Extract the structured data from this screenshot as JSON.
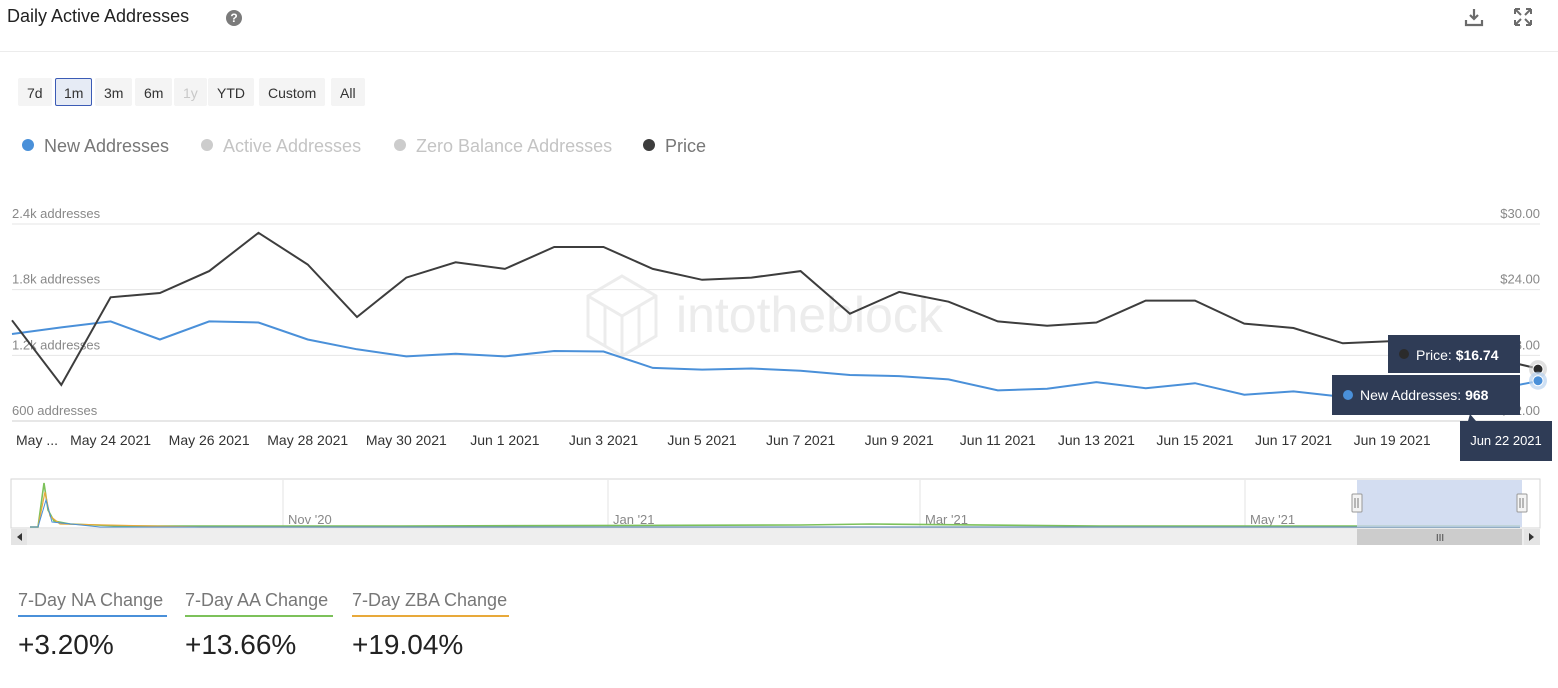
{
  "header": {
    "title": "Daily Active Addresses",
    "help_icon": "question-circle-icon",
    "download_icon": "download-icon",
    "fullscreen_icon": "fullscreen-icon",
    "help_glyph": "?"
  },
  "range_buttons": [
    {
      "label": "7d",
      "state": "normal"
    },
    {
      "label": "1m",
      "state": "active"
    },
    {
      "label": "3m",
      "state": "normal"
    },
    {
      "label": "6m",
      "state": "normal"
    },
    {
      "label": "1y",
      "state": "disabled"
    },
    {
      "label": "YTD",
      "state": "normal"
    },
    {
      "label": "Custom",
      "state": "normal"
    },
    {
      "label": "All",
      "state": "normal"
    }
  ],
  "legend": [
    {
      "label": "New Addresses",
      "color": "#4a90d9",
      "enabled": true
    },
    {
      "label": "Active Addresses",
      "color": "#cccccc",
      "enabled": false
    },
    {
      "label": "Zero Balance Addresses",
      "color": "#cccccc",
      "enabled": false
    },
    {
      "label": "Price",
      "color": "#3d3d3d",
      "enabled": true
    }
  ],
  "chart_data": {
    "type": "line",
    "x": [
      "May 22 2021",
      "May 23 2021",
      "May 24 2021",
      "May 25 2021",
      "May 26 2021",
      "May 27 2021",
      "May 28 2021",
      "May 29 2021",
      "May 30 2021",
      "May 31 2021",
      "Jun 1 2021",
      "Jun 2 2021",
      "Jun 3 2021",
      "Jun 4 2021",
      "Jun 5 2021",
      "Jun 6 2021",
      "Jun 7 2021",
      "Jun 8 2021",
      "Jun 9 2021",
      "Jun 10 2021",
      "Jun 11 2021",
      "Jun 12 2021",
      "Jun 13 2021",
      "Jun 14 2021",
      "Jun 15 2021",
      "Jun 16 2021",
      "Jun 17 2021",
      "Jun 18 2021",
      "Jun 19 2021",
      "Jun 20 2021",
      "Jun 21 2021",
      "Jun 22 2021"
    ],
    "x_tick_labels": [
      "May ...",
      "May 24 2021",
      "May 26 2021",
      "May 28 2021",
      "May 30 2021",
      "Jun 1 2021",
      "Jun 3 2021",
      "Jun 5 2021",
      "Jun 7 2021",
      "Jun 9 2021",
      "Jun 11 2021",
      "Jun 13 2021",
      "Jun 15 2021",
      "Jun 17 2021",
      "Jun 19 2021",
      "J"
    ],
    "y_left": {
      "ticks": [
        600,
        1200,
        1800,
        2400
      ],
      "tick_labels": [
        "600 addresses",
        "1.2k addresses",
        "1.8k addresses",
        "2.4k addresses"
      ],
      "range": [
        600,
        2400
      ]
    },
    "y_right": {
      "ticks": [
        12,
        18,
        24,
        30
      ],
      "tick_labels": [
        "$12.00",
        "$18.00",
        "$24.00",
        "$30.00"
      ],
      "range": [
        12,
        30
      ]
    },
    "series": [
      {
        "name": "New Addresses",
        "axis": "left",
        "color": "#4a90d9",
        "values": [
          1395,
          1455,
          1510,
          1345,
          1510,
          1500,
          1345,
          1255,
          1190,
          1215,
          1190,
          1240,
          1235,
          1085,
          1070,
          1080,
          1060,
          1020,
          1010,
          980,
          880,
          895,
          955,
          900,
          945,
          840,
          870,
          820,
          810,
          830,
          880,
          968
        ]
      },
      {
        "name": "Price",
        "axis": "right",
        "color": "#3d3d3d",
        "values": [
          21.2,
          15.3,
          23.3,
          23.7,
          25.7,
          29.2,
          26.3,
          21.5,
          25.1,
          26.5,
          25.9,
          27.9,
          27.9,
          25.9,
          24.9,
          25.1,
          25.7,
          21.8,
          23.8,
          22.9,
          21.1,
          20.7,
          21.0,
          23.0,
          23.0,
          20.9,
          20.5,
          19.1,
          19.3,
          18.8,
          17.8,
          16.74
        ]
      }
    ],
    "tooltip": {
      "date": "Jun 22 2021",
      "price_label": "Price: ",
      "price_value": "$16.74",
      "na_label": "New Addresses: ",
      "na_value": "968"
    },
    "navigator_labels": [
      "Nov '20",
      "Jan '21",
      "Mar '21",
      "May '21"
    ]
  },
  "navigator_scroll_glyph": "III",
  "watermark": "intotheblock",
  "stats": [
    {
      "label": "7-Day NA Change",
      "value": "+3.20%",
      "color": "#4a90d9"
    },
    {
      "label": "7-Day AA Change",
      "value": "+13.66%",
      "color": "#7cc15a"
    },
    {
      "label": "7-Day ZBA Change",
      "value": "+19.04%",
      "color": "#e8a93a"
    }
  ]
}
